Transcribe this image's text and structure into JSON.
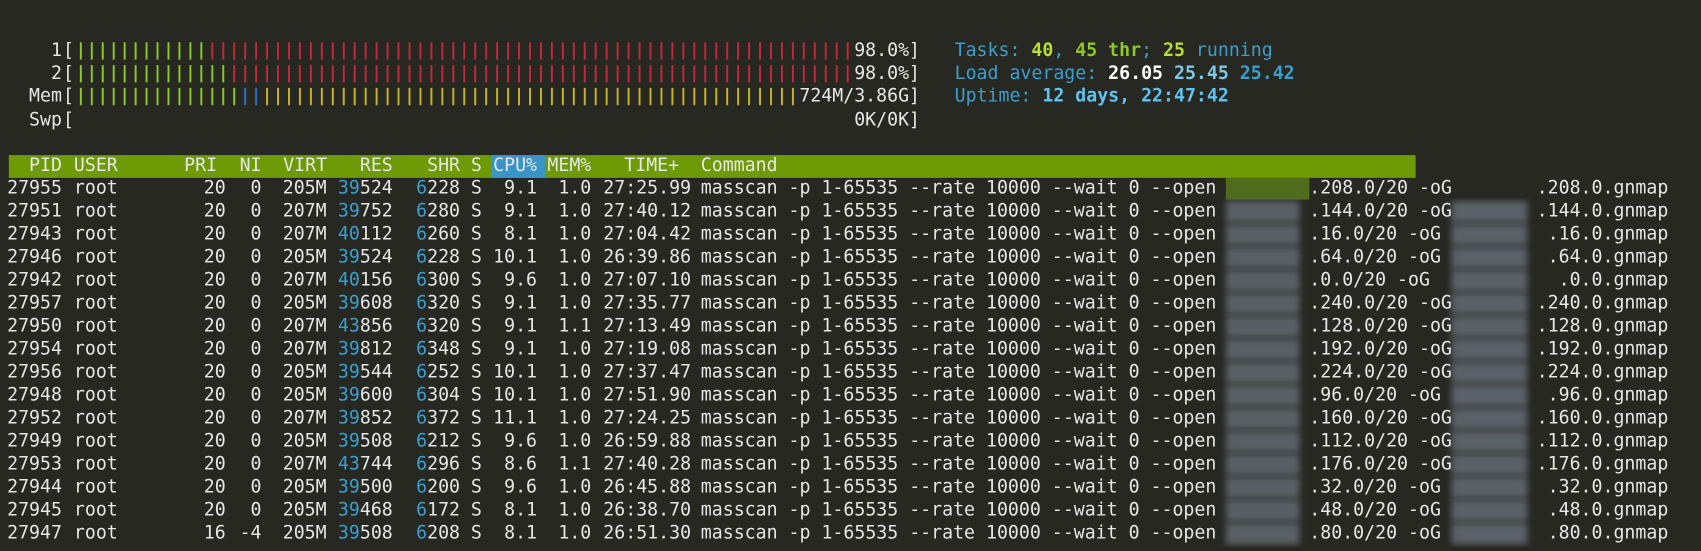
{
  "meters": [
    {
      "label": "1",
      "open": "[",
      "value": "98.0%",
      "close": "]"
    },
    {
      "label": "2",
      "open": "[",
      "value": "98.0%",
      "close": "]"
    },
    {
      "label": "Mem",
      "open": "[",
      "value": "724M/3.86G",
      "close": "]"
    },
    {
      "label": "Swp",
      "open": "[",
      "value": "0K/0K",
      "close": "]"
    }
  ],
  "summary": {
    "tasks": [
      "Tasks: ",
      "40",
      ", ",
      "45 thr",
      "; ",
      "25",
      " running"
    ],
    "load": [
      "Load average: ",
      "26.05",
      " ",
      "25.45",
      " ",
      "25.42"
    ],
    "uptime": [
      "Uptime: ",
      "12 days, 22:47:42"
    ]
  },
  "table": {
    "columns": [
      "PID",
      "USER",
      "PRI",
      "NI",
      "VIRT",
      "RES",
      "SHR",
      "S",
      "CPU%",
      "MEM%",
      "TIME+",
      "Command"
    ],
    "rows": [
      [
        "27955",
        "root",
        "20",
        "0",
        "205M",
        "39524",
        "6228",
        "S",
        "9.1",
        "1.0",
        "27:25.99",
        "masscan -p 1-65535 --rate 10000 --wait 0 --open",
        ".208.0/20 -oG",
        ".208.0.gnmap"
      ],
      [
        "27951",
        "root",
        "20",
        "0",
        "207M",
        "39752",
        "6280",
        "S",
        "9.1",
        "1.0",
        "27:40.12",
        "masscan -p 1-65535 --rate 10000 --wait 0 --open",
        ".144.0/20 -oG",
        ".144.0.gnmap"
      ],
      [
        "27943",
        "root",
        "20",
        "0",
        "207M",
        "40112",
        "6260",
        "S",
        "8.1",
        "1.0",
        "27:04.42",
        "masscan -p 1-65535 --rate 10000 --wait 0 --open",
        ".16.0/20 -oG",
        ".16.0.gnmap"
      ],
      [
        "27946",
        "root",
        "20",
        "0",
        "205M",
        "39524",
        "6228",
        "S",
        "10.1",
        "1.0",
        "26:39.86",
        "masscan -p 1-65535 --rate 10000 --wait 0 --open",
        ".64.0/20 -oG",
        ".64.0.gnmap"
      ],
      [
        "27942",
        "root",
        "20",
        "0",
        "207M",
        "40156",
        "6300",
        "S",
        "9.6",
        "1.0",
        "27:07.10",
        "masscan -p 1-65535 --rate 10000 --wait 0 --open",
        ".0.0/20 -oG",
        ".0.0.gnmap"
      ],
      [
        "27957",
        "root",
        "20",
        "0",
        "205M",
        "39608",
        "6320",
        "S",
        "9.1",
        "1.0",
        "27:35.77",
        "masscan -p 1-65535 --rate 10000 --wait 0 --open",
        ".240.0/20 -oG",
        ".240.0.gnmap"
      ],
      [
        "27950",
        "root",
        "20",
        "0",
        "207M",
        "43856",
        "6320",
        "S",
        "9.1",
        "1.1",
        "27:13.49",
        "masscan -p 1-65535 --rate 10000 --wait 0 --open",
        ".128.0/20 -oG",
        ".128.0.gnmap"
      ],
      [
        "27954",
        "root",
        "20",
        "0",
        "207M",
        "39812",
        "6348",
        "S",
        "9.1",
        "1.0",
        "27:19.08",
        "masscan -p 1-65535 --rate 10000 --wait 0 --open",
        ".192.0/20 -oG",
        ".192.0.gnmap"
      ],
      [
        "27956",
        "root",
        "20",
        "0",
        "205M",
        "39544",
        "6252",
        "S",
        "10.1",
        "1.0",
        "27:37.47",
        "masscan -p 1-65535 --rate 10000 --wait 0 --open",
        ".224.0/20 -oG",
        ".224.0.gnmap"
      ],
      [
        "27948",
        "root",
        "20",
        "0",
        "205M",
        "39600",
        "6304",
        "S",
        "10.1",
        "1.0",
        "27:51.90",
        "masscan -p 1-65535 --rate 10000 --wait 0 --open",
        ".96.0/20 -oG",
        ".96.0.gnmap"
      ],
      [
        "27952",
        "root",
        "20",
        "0",
        "207M",
        "39852",
        "6372",
        "S",
        "11.1",
        "1.0",
        "27:24.25",
        "masscan -p 1-65535 --rate 10000 --wait 0 --open",
        ".160.0/20 -oG",
        ".160.0.gnmap"
      ],
      [
        "27949",
        "root",
        "20",
        "0",
        "205M",
        "39508",
        "6212",
        "S",
        "9.6",
        "1.0",
        "26:59.88",
        "masscan -p 1-65535 --rate 10000 --wait 0 --open",
        ".112.0/20 -oG",
        ".112.0.gnmap"
      ],
      [
        "27953",
        "root",
        "20",
        "0",
        "207M",
        "43744",
        "6296",
        "S",
        "8.6",
        "1.1",
        "27:40.28",
        "masscan -p 1-65535 --rate 10000 --wait 0 --open",
        ".176.0/20 -oG",
        ".176.0.gnmap"
      ],
      [
        "27944",
        "root",
        "20",
        "0",
        "205M",
        "39500",
        "6200",
        "S",
        "9.6",
        "1.0",
        "26:45.88",
        "masscan -p 1-65535 --rate 10000 --wait 0 --open",
        ".32.0/20 -oG",
        ".32.0.gnmap"
      ],
      [
        "27945",
        "root",
        "20",
        "0",
        "205M",
        "39468",
        "6172",
        "S",
        "8.1",
        "1.0",
        "26:38.70",
        "masscan -p 1-65535 --rate 10000 --wait 0 --open",
        ".48.0/20 -oG",
        ".48.0.gnmap"
      ],
      [
        "27947",
        "root",
        "16",
        "-4",
        "205M",
        "39508",
        "6208",
        "S",
        "8.1",
        "1.0",
        "26:51.30",
        "masscan -p 1-65535 --rate 10000 --wait 0 --open",
        ".80.0/20 -oG",
        ".80.0.gnmap"
      ]
    ]
  }
}
